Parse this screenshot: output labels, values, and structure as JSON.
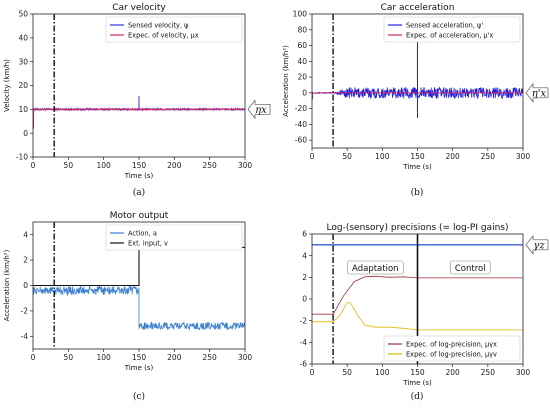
{
  "chart_data": [
    {
      "panel": "a",
      "type": "line",
      "title": "Car velocity",
      "xlabel": "Time (s)",
      "ylabel": "Velocity (km/h)",
      "xlim": [
        0,
        300
      ],
      "ylim": [
        -10,
        50
      ],
      "xticks": [
        "0",
        "50",
        "100",
        "150",
        "200",
        "250",
        "300"
      ],
      "yticks": [
        "-10",
        "0",
        "10",
        "20",
        "30",
        "40",
        "50"
      ],
      "vline_x": 30,
      "series": [
        {
          "name": "Sensed velocity, ψ",
          "color": "#3333dd",
          "base": 10,
          "noise": 0.4,
          "spike": {
            "x": 150,
            "y": 15.5
          }
        },
        {
          "name": "Expec. of velocity, μx",
          "color": "#d6285c",
          "base": 10,
          "noise": 0.3
        }
      ],
      "arrow_label": "ηx",
      "caption": "(a)"
    },
    {
      "panel": "b",
      "type": "line",
      "title": "Car acceleration",
      "xlabel": "Time (s)",
      "ylabel": "Acceleration (km/h²)",
      "xlim": [
        0,
        300
      ],
      "ylim": [
        -70,
        100
      ],
      "xticks": [
        "0",
        "50",
        "100",
        "150",
        "200",
        "250",
        "300"
      ],
      "yticks": [
        "-60",
        "-40",
        "-20",
        "0",
        "20",
        "40",
        "60",
        "80",
        "100"
      ],
      "vline_x": 30,
      "series": [
        {
          "name": "Sensed acceleration, ψ'",
          "color": "#2222dd",
          "base": 0,
          "noise": 7,
          "spike": {
            "x": 150,
            "y": 67,
            "y2": -32
          }
        },
        {
          "name": "Expec. of acceleration, μ'x",
          "color": "#d6285c",
          "base": 0,
          "noise": 0.3
        }
      ],
      "arrow_label": "η'x",
      "caption": "(b)"
    },
    {
      "panel": "c",
      "type": "line",
      "title": "Motor output",
      "xlabel": "Time (s)",
      "ylabel": "Acceleration (km/h²)",
      "xlim": [
        0,
        300
      ],
      "ylim": [
        -5,
        5
      ],
      "xticks": [
        "0",
        "50",
        "100",
        "150",
        "200",
        "250",
        "300"
      ],
      "yticks": [
        "-4",
        "-2",
        "0",
        "2",
        "4"
      ],
      "vline_x": 30,
      "series": [
        {
          "name": "Action, a",
          "color": "#3a7fd0",
          "segments": [
            [
              0,
              150,
              -0.4
            ],
            [
              150,
              300,
              -3.2
            ]
          ],
          "noise": 0.25
        },
        {
          "name": "Ext. input, v",
          "color": "#111111",
          "steps": [
            [
              0,
              0
            ],
            [
              150,
              0
            ],
            [
              150,
              3
            ],
            [
              300,
              3
            ]
          ]
        }
      ],
      "caption": "(c)"
    },
    {
      "panel": "d",
      "type": "line",
      "title": "Log-(sensory) precisions (= log-PI gains)",
      "xlabel": "Time (s)",
      "ylabel": "",
      "xlim": [
        0,
        300
      ],
      "ylim": [
        -6,
        6
      ],
      "xticks": [
        "0",
        "50",
        "100",
        "150",
        "200",
        "250",
        "300"
      ],
      "yticks": [
        "-6",
        "-4",
        "-2",
        "0",
        "2",
        "4",
        "6"
      ],
      "vline_x": 30,
      "phase_line_x": 150,
      "phases": [
        "Adaptation",
        "Control"
      ],
      "hline": {
        "y": 5,
        "color": "#3d5ccf"
      },
      "series": [
        {
          "name": "Expec. of log-precision, μγx",
          "color": "#a0303a",
          "points": [
            [
              0,
              -1.4
            ],
            [
              30,
              -1.4
            ],
            [
              45,
              0.3
            ],
            [
              60,
              1.6
            ],
            [
              75,
              2.05
            ],
            [
              90,
              2.1
            ],
            [
              110,
              2.0
            ],
            [
              130,
              2.05
            ],
            [
              150,
              1.95
            ],
            [
              300,
              1.95
            ]
          ]
        },
        {
          "name": "Expec. of log-precision, μγv",
          "color": "#e2b800",
          "points": [
            [
              0,
              -2.1
            ],
            [
              30,
              -2.1
            ],
            [
              40,
              -1.5
            ],
            [
              50,
              -0.3
            ],
            [
              55,
              -0.4
            ],
            [
              65,
              -1.5
            ],
            [
              75,
              -2.4
            ],
            [
              90,
              -2.6
            ],
            [
              110,
              -2.6
            ],
            [
              130,
              -2.7
            ],
            [
              150,
              -2.85
            ],
            [
              300,
              -2.85
            ]
          ]
        }
      ],
      "arrow_label": "γz",
      "caption": "(d)"
    }
  ]
}
